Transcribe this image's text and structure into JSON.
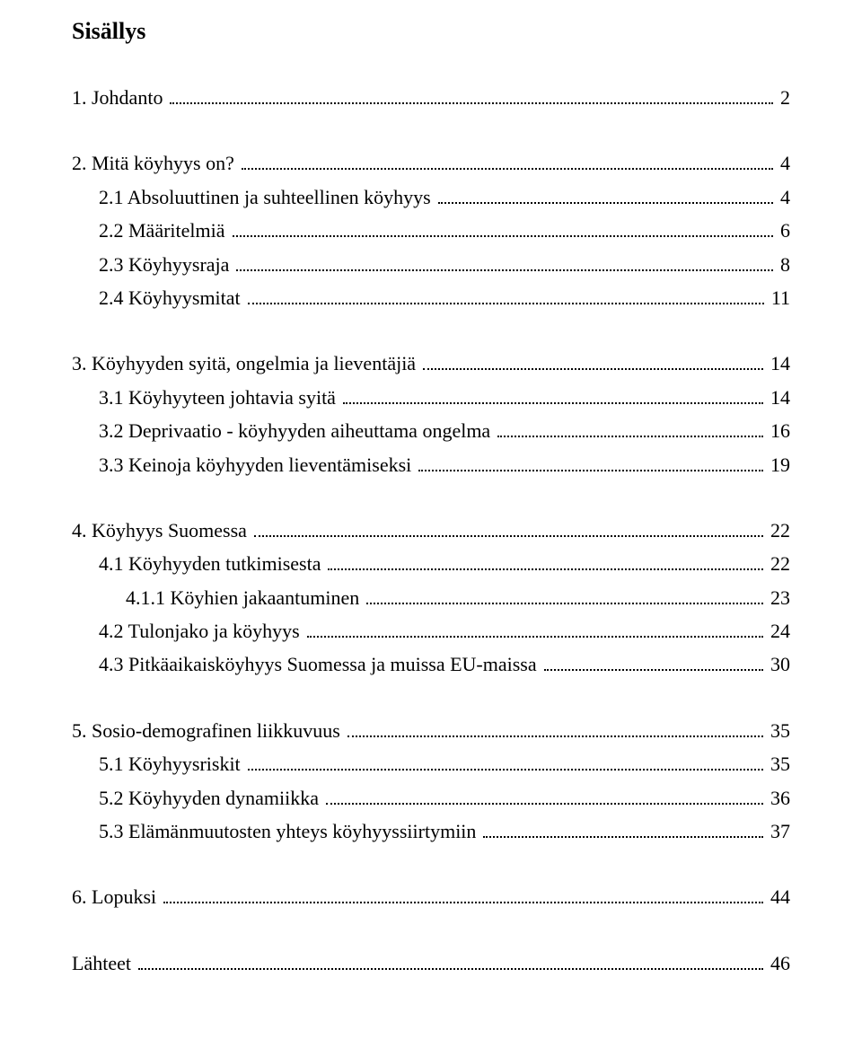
{
  "title": "Sisällys",
  "fontsize_title": 26,
  "fontsize_body": 22,
  "text_color": "#000000",
  "background_color": "#ffffff",
  "toc": [
    [
      {
        "label": "1.  Johdanto",
        "page": "2",
        "indent": 0
      }
    ],
    [
      {
        "label": "2.  Mitä köyhyys on?",
        "page": "4",
        "indent": 0
      },
      {
        "label": "2.1 Absoluuttinen ja suhteellinen köyhyys",
        "page": "4",
        "indent": 1
      },
      {
        "label": "2.2 Määritelmiä",
        "page": "6",
        "indent": 1
      },
      {
        "label": "2.3 Köyhyysraja",
        "page": "8",
        "indent": 1
      },
      {
        "label": "2.4 Köyhyysmitat",
        "page": "11",
        "indent": 1
      }
    ],
    [
      {
        "label": "3.  Köyhyyden syitä, ongelmia ja lieventäjiä",
        "page": "14",
        "indent": 0
      },
      {
        "label": "3.1 Köyhyyteen johtavia syitä",
        "page": "14",
        "indent": 1
      },
      {
        "label": "3.2 Deprivaatio - köyhyyden aiheuttama ongelma",
        "page": "16",
        "indent": 1
      },
      {
        "label": "3.3 Keinoja köyhyyden lieventämiseksi",
        "page": "19",
        "indent": 1
      }
    ],
    [
      {
        "label": "4.  Köyhyys Suomessa",
        "page": "22",
        "indent": 0
      },
      {
        "label": "4.1 Köyhyyden tutkimisesta",
        "page": "22",
        "indent": 1
      },
      {
        "label": "4.1.1 Köyhien jakaantuminen",
        "page": "23",
        "indent": 2
      },
      {
        "label": "4.2 Tulonjako ja köyhyys",
        "page": "24",
        "indent": 1
      },
      {
        "label": "4.3 Pitkäaikaisköyhyys Suomessa ja muissa EU-maissa",
        "page": "30",
        "indent": 1
      }
    ],
    [
      {
        "label": "5.  Sosio-demografinen liikkuvuus",
        "page": "35",
        "indent": 0
      },
      {
        "label": "5.1 Köyhyysriskit",
        "page": "35",
        "indent": 1
      },
      {
        "label": "5.2 Köyhyyden dynamiikka",
        "page": "36",
        "indent": 1
      },
      {
        "label": "5.3 Elämänmuutosten yhteys köyhyyssiirtymiin",
        "page": "37",
        "indent": 1
      }
    ],
    [
      {
        "label": "6.  Lopuksi",
        "page": "44",
        "indent": 0
      }
    ],
    [
      {
        "label": "Lähteet",
        "page": "46",
        "indent": 0
      }
    ]
  ]
}
